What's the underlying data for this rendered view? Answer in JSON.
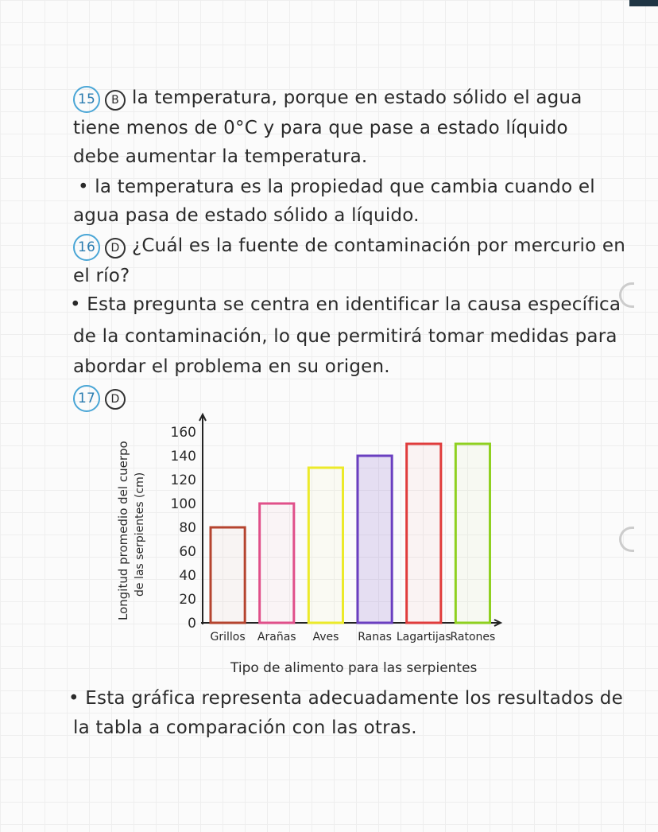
{
  "q15": {
    "number": "15",
    "option": "B",
    "lines": [
      "la temperatura, porque en estado sólido el agua",
      "tiene menos de 0°C y para que pase a estado líquido",
      "debe aumentar la temperatura."
    ],
    "bullet": [
      "• la temperatura es la propiedad que cambia cuando el",
      "agua pasa de estado sólido a líquido."
    ]
  },
  "q16": {
    "number": "16",
    "option": "D",
    "lines": [
      "¿Cuál es la fuente de contaminación por mercurio en",
      "el río?"
    ],
    "bullet": [
      "• Esta pregunta se centra en identificar la causa específica",
      "de la contaminación, lo que permitirá tomar medidas para",
      "abordar el problema en su origen."
    ]
  },
  "q17": {
    "number": "17",
    "option": "D",
    "bullet": [
      "• Esta gráfica representa adecuadamente los resultados de",
      "la tabla a comparación con las otras."
    ]
  },
  "chart_data": {
    "type": "bar",
    "categories": [
      "Grillos",
      "Arañas",
      "Aves",
      "Ranas",
      "Lagartijas",
      "Ratones"
    ],
    "values": [
      80,
      100,
      130,
      140,
      150,
      150
    ],
    "colors": [
      "#b5442f",
      "#e0508a",
      "#ecea2a",
      "#6a3fc0",
      "#e03c3c",
      "#8fd020"
    ],
    "ylabel_lines": [
      "Longitud promedio del cuerpo",
      "de las serpientes (cm)"
    ],
    "xlabel": "Tipo de alimento para las serpientes",
    "yticks": [
      0,
      20,
      40,
      60,
      80,
      100,
      120,
      140,
      160
    ],
    "ylim": [
      0,
      160
    ]
  }
}
